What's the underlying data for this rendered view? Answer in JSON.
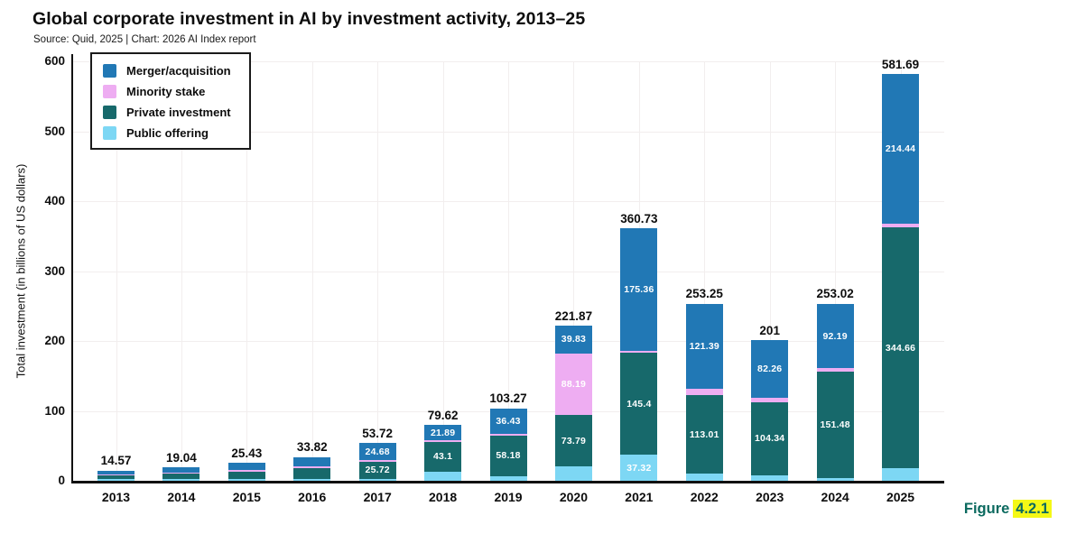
{
  "header": {
    "title": "Global corporate investment in AI by investment activity, 2013–25",
    "source": "Source: Quid, 2025 | Chart: 2026 AI Index report"
  },
  "figure_label": {
    "prefix": "Figure",
    "number": "4.2.1"
  },
  "chart_data": {
    "type": "bar",
    "subtype": "stacked",
    "title": "Global corporate investment in AI by investment activity, 2013–25",
    "xlabel": "",
    "ylabel": "Total investment (in billions of US dollars)",
    "ylim": [
      0,
      600
    ],
    "yticks": [
      0,
      100,
      200,
      300,
      400,
      500,
      600
    ],
    "grid": true,
    "legend_position": "top-left-inside",
    "categories": [
      "2013",
      "2014",
      "2015",
      "2016",
      "2017",
      "2018",
      "2019",
      "2020",
      "2021",
      "2022",
      "2023",
      "2024",
      "2025"
    ],
    "totals": [
      14.57,
      19.04,
      25.43,
      33.82,
      53.72,
      79.62,
      103.27,
      221.87,
      360.73,
      253.25,
      201,
      253.02,
      581.69
    ],
    "total_labels": [
      "14.57",
      "19.04",
      "25.43",
      "33.82",
      "53.72",
      "79.62",
      "103.27",
      "221.87",
      "360.73",
      "253.25",
      "201",
      "253.02",
      "581.69"
    ],
    "stack_order": "bottom-to-top",
    "series": [
      {
        "name": "Public offering",
        "color": "#7dd7f4",
        "values": [
          2.4,
          2.3,
          2.0,
          2.6,
          2.0,
          13.0,
          6.5,
          20.06,
          37.32,
          9.9,
          7.9,
          4.4,
          17.6
        ],
        "labels": [
          null,
          null,
          null,
          null,
          null,
          null,
          null,
          null,
          "37.32",
          null,
          null,
          null,
          null
        ]
      },
      {
        "name": "Private investment",
        "color": "#17696b",
        "values": [
          5.0,
          8.0,
          11.5,
          15.5,
          25.72,
          43.1,
          58.18,
          73.79,
          145.4,
          113.01,
          104.34,
          151.48,
          344.66
        ],
        "labels": [
          null,
          null,
          null,
          null,
          "25.72",
          "43.1",
          "58.18",
          "73.79",
          "145.4",
          "113.01",
          "104.34",
          "151.48",
          "344.66"
        ]
      },
      {
        "name": "Minority stake",
        "color": "#eeadf2",
        "values": [
          1.2,
          1.2,
          1.9,
          2.0,
          1.32,
          1.63,
          2.16,
          88.19,
          2.65,
          8.95,
          6.5,
          4.95,
          4.99
        ],
        "labels": [
          null,
          null,
          null,
          null,
          null,
          null,
          null,
          "88.19",
          null,
          null,
          null,
          null,
          null
        ]
      },
      {
        "name": "Merger/acquisition",
        "color": "#2178b5",
        "values": [
          5.97,
          7.54,
          10.03,
          13.72,
          24.68,
          21.89,
          36.43,
          39.83,
          175.36,
          121.39,
          82.26,
          92.19,
          214.44
        ],
        "labels": [
          null,
          null,
          null,
          null,
          "24.68",
          "21.89",
          "36.43",
          "39.83",
          "175.36",
          "121.39",
          "82.26",
          "92.19",
          "214.44"
        ]
      }
    ],
    "legend": [
      {
        "label": "Merger/acquisition",
        "color": "#2178b5"
      },
      {
        "label": "Minority stake",
        "color": "#eeadf2"
      },
      {
        "label": "Private investment",
        "color": "#17696b"
      },
      {
        "label": "Public offering",
        "color": "#7dd7f4"
      }
    ]
  }
}
